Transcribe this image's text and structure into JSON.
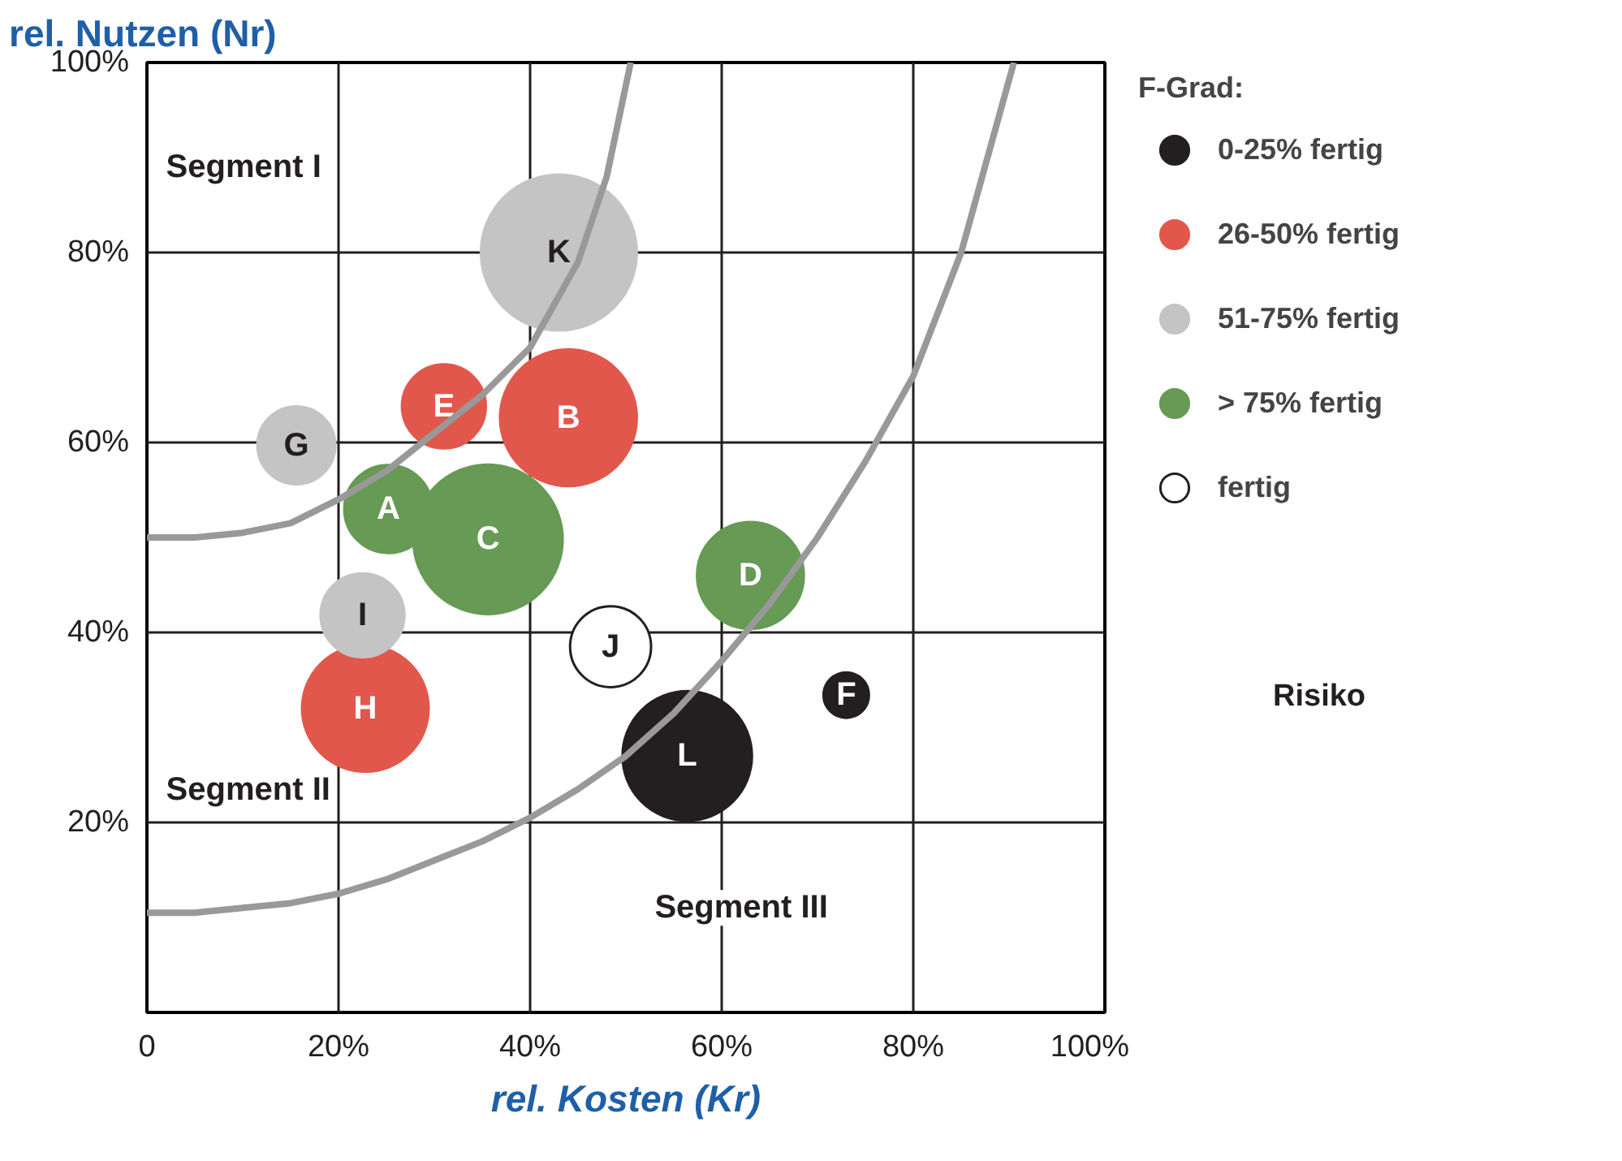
{
  "chart_data": {
    "type": "bubble",
    "xlabel": "rel. Kosten (Kr)",
    "ylabel": "rel. Nutzen (Nr)",
    "legend_title": "F-Grad:",
    "xlim": [
      0,
      100
    ],
    "ylim": [
      0,
      100
    ],
    "xticks": [
      {
        "value": 0,
        "label": "0"
      },
      {
        "value": 20,
        "label": "20%"
      },
      {
        "value": 40,
        "label": "40%"
      },
      {
        "value": 60,
        "label": "60%"
      },
      {
        "value": 80,
        "label": "80%"
      },
      {
        "value": 100,
        "label": "100%"
      }
    ],
    "yticks": [
      {
        "value": 20,
        "label": "20%"
      },
      {
        "value": 40,
        "label": "40%"
      },
      {
        "value": 60,
        "label": "60%"
      },
      {
        "value": 80,
        "label": "80%"
      },
      {
        "value": 100,
        "label": "100%"
      }
    ],
    "grid": true,
    "legend": "right",
    "series": [
      {
        "name": "0-25% fertig",
        "color": "#231f20",
        "x": [
          56.4,
          73
        ],
        "values": [
          27,
          33.4
        ],
        "sizes": [
          0.69,
          0.085
        ],
        "value_labels": [
          "L",
          "F"
        ]
      },
      {
        "name": "26-50% fertig",
        "color": "#e2574c",
        "x": [
          31,
          44,
          22.8
        ],
        "values": [
          63.8,
          62.6,
          32
        ],
        "sizes": [
          0.29,
          0.77,
          0.66
        ],
        "value_labels": [
          "E",
          "B",
          "H"
        ]
      },
      {
        "name": "51-75% fertig",
        "color": "#c4c4c4",
        "x": [
          43,
          15.6,
          22.5
        ],
        "values": [
          80,
          59.7,
          41.8
        ],
        "sizes": [
          1,
          0.25,
          0.29
        ],
        "value_labels": [
          "K",
          "G",
          "I"
        ]
      },
      {
        "name": "> 75% fertig",
        "color": "#669a55",
        "x": [
          25.2,
          35.6,
          63
        ],
        "values": [
          53,
          49.8,
          46
        ],
        "sizes": [
          0.32,
          0.92,
          0.47
        ],
        "value_labels": [
          "A",
          "C",
          "D"
        ]
      },
      {
        "name": "fertig",
        "color": "#ffffff",
        "x": [
          48.4
        ],
        "values": [
          38.5
        ],
        "sizes": [
          0.27
        ],
        "value_labels": [
          "J"
        ]
      },
      {
        "type": "line",
        "color": "#999999",
        "x": [
          0,
          5,
          10,
          15,
          20,
          25,
          30,
          35,
          40,
          45,
          48,
          50.5
        ],
        "values": [
          50,
          50,
          50.5,
          51.5,
          54,
          57,
          61,
          65,
          70,
          79,
          88,
          100
        ]
      },
      {
        "type": "line",
        "color": "#999999",
        "x": [
          0,
          5,
          10,
          15,
          20,
          25,
          30,
          35,
          40,
          45,
          50,
          55,
          60,
          65,
          70,
          75,
          80,
          85,
          90.5
        ],
        "values": [
          10.5,
          10.5,
          11,
          11.5,
          12.5,
          14,
          16,
          18,
          20.5,
          23.5,
          27,
          31.5,
          37,
          43,
          50,
          58,
          67,
          80,
          100
        ]
      }
    ],
    "annotations": [
      "Segment I",
      "Segment II",
      "Segment III",
      "Risiko"
    ]
  }
}
